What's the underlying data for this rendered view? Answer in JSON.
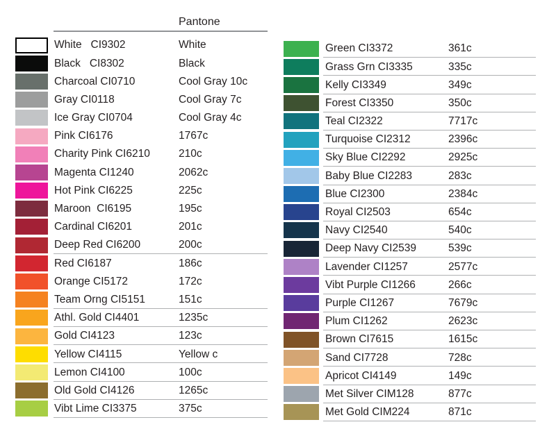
{
  "header": {
    "pantone_label": "Pantone"
  },
  "styles": {
    "text_color": "#231f20",
    "divider_color": "#aeb0b2",
    "header_rule_color": "#919396"
  },
  "tables": {
    "left": {
      "rows": [
        {
          "label": "White   CI9302",
          "pantone": "White",
          "color": "#ffffff",
          "swatch_border": true,
          "divider": false
        },
        {
          "label": "Black   CI8302",
          "pantone": "Black",
          "color": "#0b0c0b",
          "swatch_border": false,
          "divider": false
        },
        {
          "label": "Charcoal CI0710",
          "pantone": "Cool Gray 10c",
          "color": "#68706b",
          "swatch_border": false,
          "divider": false
        },
        {
          "label": "Gray CI0118",
          "pantone": "Cool Gray 7c",
          "color": "#9c9d9d",
          "swatch_border": false,
          "divider": false
        },
        {
          "label": "Ice Gray CI0704",
          "pantone": "Cool Gray 4c",
          "color": "#c2c4c6",
          "swatch_border": false,
          "divider": false
        },
        {
          "label": "Pink CI6176",
          "pantone": "1767c",
          "color": "#f5a9c1",
          "swatch_border": false,
          "divider": false
        },
        {
          "label": "Charity Pink CI6210",
          "pantone": "210c",
          "color": "#f180b8",
          "swatch_border": false,
          "divider": false
        },
        {
          "label": "Magenta CI1240",
          "pantone": "2062c",
          "color": "#b74591",
          "swatch_border": false,
          "divider": false
        },
        {
          "label": "Hot Pink CI6225",
          "pantone": "225c",
          "color": "#ee169b",
          "swatch_border": false,
          "divider": false
        },
        {
          "label": "Maroon  CI6195",
          "pantone": "195c",
          "color": "#7d2c3e",
          "swatch_border": false,
          "divider": false
        },
        {
          "label": "Cardinal CI6201",
          "pantone": "201c",
          "color": "#a32036",
          "swatch_border": false,
          "divider": false
        },
        {
          "label": "Deep Red CI6200",
          "pantone": "200c",
          "color": "#b02833",
          "swatch_border": false,
          "divider": true
        },
        {
          "label": "Red CI6187",
          "pantone": "186c",
          "color": "#d22630",
          "swatch_border": false,
          "divider": false
        },
        {
          "label": "Orange CI5172",
          "pantone": "172c",
          "color": "#f1512a",
          "swatch_border": false,
          "divider": false
        },
        {
          "label": "Team Orng CI5151",
          "pantone": "151c",
          "color": "#f58220",
          "swatch_border": false,
          "divider": true
        },
        {
          "label": "Athl. Gold CI4401",
          "pantone": "1235c",
          "color": "#f9a51d",
          "swatch_border": false,
          "divider": true
        },
        {
          "label": "Gold CI4123",
          "pantone": "123c",
          "color": "#fcb53f",
          "swatch_border": false,
          "divider": true
        },
        {
          "label": "Yellow CI4115",
          "pantone": "Yellow c",
          "color": "#fedd00",
          "swatch_border": false,
          "divider": true
        },
        {
          "label": "Lemon CI4100",
          "pantone": "100c",
          "color": "#f3ea73",
          "swatch_border": false,
          "divider": true
        },
        {
          "label": "Old Gold CI4126",
          "pantone": "1265c",
          "color": "#8c6e2e",
          "swatch_border": false,
          "divider": true
        },
        {
          "label": "Vibt Lime CI3375",
          "pantone": "375c",
          "color": "#a7ce44",
          "swatch_border": false,
          "divider": true
        }
      ]
    },
    "right": {
      "rows": [
        {
          "label": "Green CI3372",
          "pantone": "361c",
          "color": "#3cb14f",
          "swatch_border": false,
          "divider": true
        },
        {
          "label": "Grass Grn CI3335",
          "pantone": "335c",
          "color": "#0e7d5d",
          "swatch_border": false,
          "divider": true
        },
        {
          "label": "Kelly CI3349",
          "pantone": "349c",
          "color": "#1a7340",
          "swatch_border": false,
          "divider": true
        },
        {
          "label": "Forest CI3350",
          "pantone": "350c",
          "color": "#3e5231",
          "swatch_border": false,
          "divider": true
        },
        {
          "label": "Teal CI2322",
          "pantone": "7717c",
          "color": "#11737d",
          "swatch_border": false,
          "divider": true
        },
        {
          "label": "Turquoise CI2312",
          "pantone": "2396c",
          "color": "#22a2be",
          "swatch_border": false,
          "divider": true
        },
        {
          "label": "Sky Blue CI2292",
          "pantone": "2925c",
          "color": "#41b0e5",
          "swatch_border": false,
          "divider": true
        },
        {
          "label": "Baby Blue CI2283",
          "pantone": "283c",
          "color": "#a2c7e9",
          "swatch_border": false,
          "divider": true
        },
        {
          "label": "Blue CI2300",
          "pantone": "2384c",
          "color": "#1d6db2",
          "swatch_border": false,
          "divider": true
        },
        {
          "label": "Royal CI2503",
          "pantone": "654c",
          "color": "#28448e",
          "swatch_border": false,
          "divider": true
        },
        {
          "label": "Navy CI2540",
          "pantone": "540c",
          "color": "#15344b",
          "swatch_border": false,
          "divider": true
        },
        {
          "label": "Deep Navy CI2539",
          "pantone": "539c",
          "color": "#182536",
          "swatch_border": false,
          "divider": true
        },
        {
          "label": "Lavender CI1257",
          "pantone": "2577c",
          "color": "#ae82c6",
          "swatch_border": false,
          "divider": true
        },
        {
          "label": "Vibt Purple CI1266",
          "pantone": "266c",
          "color": "#6c3b9e",
          "swatch_border": false,
          "divider": true
        },
        {
          "label": "Purple CI1267",
          "pantone": "7679c",
          "color": "#593c9d",
          "swatch_border": false,
          "divider": true
        },
        {
          "label": "Plum CI1262",
          "pantone": "2623c",
          "color": "#702672",
          "swatch_border": false,
          "divider": true
        },
        {
          "label": "Brown CI7615",
          "pantone": "1615c",
          "color": "#805327",
          "swatch_border": false,
          "divider": true
        },
        {
          "label": "Sand CI7728",
          "pantone": "728c",
          "color": "#d3a574",
          "swatch_border": false,
          "divider": true
        },
        {
          "label": "Apricot CI4149",
          "pantone": "149c",
          "color": "#fbc286",
          "swatch_border": false,
          "divider": true
        },
        {
          "label": "Met Silver CIM128",
          "pantone": "877c",
          "color": "#9da5ae",
          "swatch_border": false,
          "divider": true
        },
        {
          "label": "Met Gold CIM224",
          "pantone": "871c",
          "color": "#a79456",
          "swatch_border": false,
          "divider": true
        }
      ]
    }
  }
}
